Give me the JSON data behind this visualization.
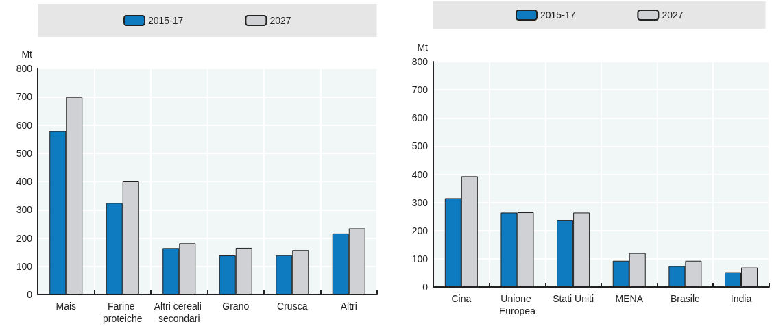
{
  "chart_data": [
    {
      "type": "bar",
      "ylabel": "Mt",
      "categories": [
        "Mais",
        "Farine proteiche",
        "Altri cereali secondari",
        "Grano",
        "Crusca",
        "Altri"
      ],
      "series": [
        {
          "name": "2015-17",
          "color": "#0e7abf",
          "values": [
            578,
            324,
            164,
            138,
            139,
            216
          ]
        },
        {
          "name": "2027",
          "color": "#d0d1d4",
          "values": [
            699,
            400,
            181,
            165,
            157,
            234
          ]
        }
      ],
      "ylim": [
        0,
        800
      ],
      "yticks": [
        0,
        100,
        200,
        300,
        400,
        500,
        600,
        700,
        800
      ],
      "grid": true,
      "legend": "top"
    },
    {
      "type": "bar",
      "ylabel": "Mt",
      "categories": [
        "Cina",
        "Unione Europea",
        "Stati Uniti",
        "MENA",
        "Brasile",
        "India"
      ],
      "series": [
        {
          "name": "2015-17",
          "color": "#0e7abf",
          "values": [
            315,
            264,
            238,
            93,
            74,
            52
          ]
        },
        {
          "name": "2027",
          "color": "#d0d1d4",
          "values": [
            393,
            265,
            264,
            120,
            93,
            69
          ]
        }
      ],
      "ylim": [
        0,
        800
      ],
      "yticks": [
        0,
        100,
        200,
        300,
        400,
        500,
        600,
        700,
        800
      ],
      "grid": true,
      "legend": "top"
    }
  ]
}
